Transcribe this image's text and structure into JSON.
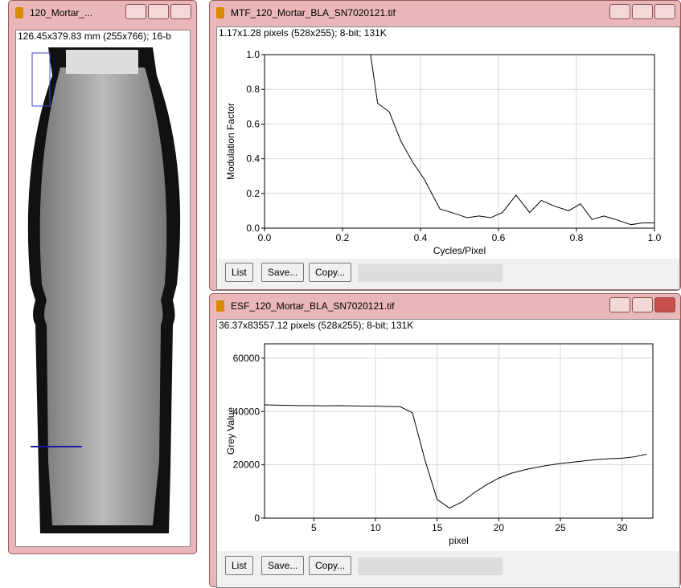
{
  "windows": [
    {
      "title": "120_Mortar_...",
      "info": "126.45x379.83 mm (255x766); 16-b"
    },
    {
      "title": "MTF_120_Mortar_BLA_SN7020121.tif",
      "info": "1.17x1.28 pixels (528x255); 8-bit; 131K",
      "buttons": [
        "List",
        "Save...",
        "Copy..."
      ]
    },
    {
      "title": "ESF_120_Mortar_BLA_SN7020121.tif",
      "info": "36.37x83557.12 pixels (528x255); 8-bit; 131K",
      "buttons": [
        "List",
        "Save...",
        "Copy..."
      ]
    }
  ],
  "chart_data": [
    {
      "type": "line",
      "x_label": "Cycles/Pixel",
      "y_label": "Modulation Factor",
      "color": "#000000",
      "grid": true,
      "x": [
        0.272,
        0.29,
        0.32,
        0.35,
        0.38,
        0.41,
        0.45,
        0.48,
        0.52,
        0.55,
        0.58,
        0.61,
        0.645,
        0.68,
        0.71,
        0.74,
        0.78,
        0.81,
        0.84,
        0.87,
        0.9,
        0.94,
        0.97,
        1.0
      ],
      "values": [
        1.0,
        0.72,
        0.67,
        0.5,
        0.38,
        0.28,
        0.11,
        0.09,
        0.06,
        0.07,
        0.06,
        0.09,
        0.19,
        0.09,
        0.16,
        0.13,
        0.1,
        0.14,
        0.05,
        0.07,
        0.05,
        0.02,
        0.03,
        0.03
      ],
      "xlim": [
        0,
        1
      ],
      "ylim": [
        0,
        1
      ],
      "xticks": [
        {
          "value": 0,
          "label": "0.0"
        },
        0.2,
        0.4,
        0.6,
        0.8,
        {
          "value": 1,
          "label": "1.0"
        }
      ],
      "yticks": [
        {
          "value": 0,
          "label": "0.0"
        },
        0.2,
        0.4,
        0.6,
        0.8,
        {
          "value": 1,
          "label": "1.0"
        }
      ]
    },
    {
      "type": "line",
      "x_label": "pixel",
      "y_label": "Grey Value",
      "color": "#000000",
      "grid": true,
      "x": [
        1,
        2,
        3,
        4,
        5,
        6,
        7,
        8,
        9,
        10,
        11,
        12,
        13,
        14,
        15,
        16,
        17,
        18,
        19,
        20,
        21,
        22,
        23,
        24,
        25,
        26,
        27,
        28,
        29,
        30,
        31,
        32
      ],
      "values": [
        42500,
        42400,
        42300,
        42200,
        42200,
        42100,
        42200,
        42100,
        42000,
        42000,
        41900,
        41800,
        39500,
        22000,
        7000,
        3800,
        6000,
        9500,
        12500,
        15000,
        16800,
        18000,
        19000,
        19800,
        20500,
        21000,
        21500,
        22000,
        22300,
        22500,
        23000,
        24000
      ],
      "xlim": [
        1,
        32.5
      ],
      "ylim": [
        0,
        65400
      ],
      "xticks": [
        5,
        10,
        15,
        20,
        25,
        30
      ],
      "yticks": [
        0,
        20000,
        40000,
        60000
      ]
    }
  ]
}
